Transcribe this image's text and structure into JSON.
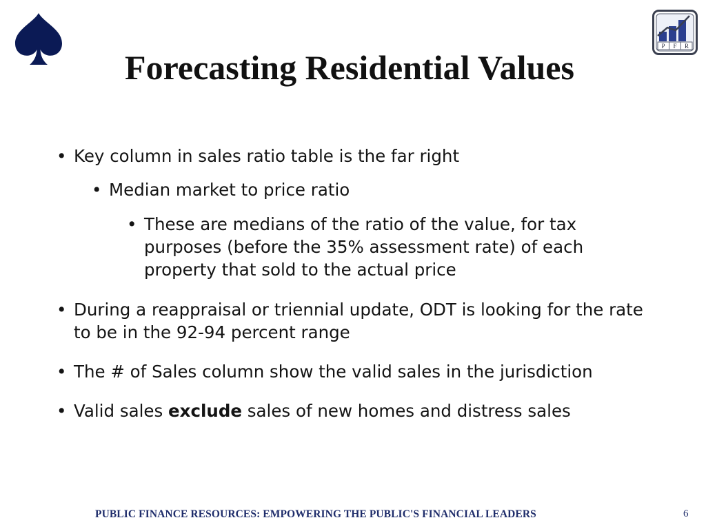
{
  "slide": {
    "title": "Forecasting Residential Values",
    "bullets": {
      "b1": "Key column in sales ratio table is the far right",
      "b2": "Median market to price ratio",
      "b3": "These are medians of the ratio of the value, for tax purposes (before the 35% assessment rate) of each property that sold to the actual price",
      "b4": "During a reappraisal or triennial update, ODT is looking for the rate to be in the 92-94 percent range",
      "b5": "The # of Sales column show the valid sales in the jurisdiction",
      "b6_before": "Valid sales ",
      "b6_bold": "exclude",
      "b6_after": " sales of new homes and distress sales"
    },
    "bullet_glyph": "•",
    "footer": "PUBLIC FINANCE RESOURCES: EMPOWERING THE PUBLIC'S FINANCIAL LEADERS",
    "page_number": "6",
    "logo_letters": [
      "P",
      "F",
      "R"
    ]
  },
  "colors": {
    "spade": "#0b1a55",
    "footer_text": "#1f2d6b",
    "logo_frame": "#3a3f4f",
    "logo_bars": "#2b3f8f"
  },
  "icons": {
    "spade": "spade-icon",
    "pfr": "pfr-logo-icon"
  }
}
